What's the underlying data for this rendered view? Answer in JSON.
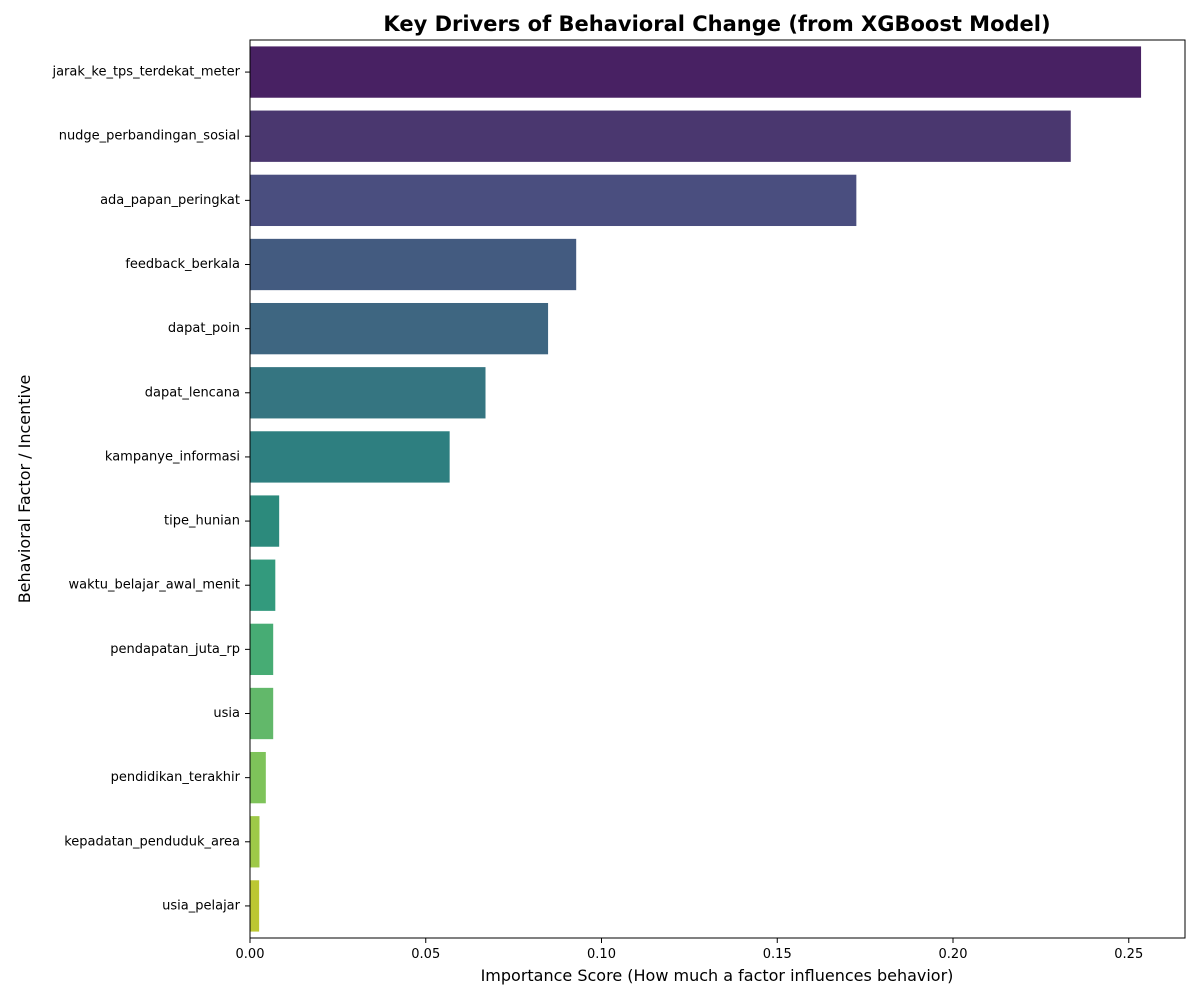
{
  "chart_data": {
    "type": "bar",
    "orientation": "horizontal",
    "title": "Key Drivers of Behavioral Change (from XGBoost Model)",
    "xlabel": "Importance Score (How much a factor influences behavior)",
    "ylabel": "Behavioral Factor / Incentive",
    "xlim": [
      0,
      0.266
    ],
    "xticks": [
      0.0,
      0.05,
      0.1,
      0.15,
      0.2,
      0.25
    ],
    "xtick_labels": [
      "0.00",
      "0.05",
      "0.10",
      "0.15",
      "0.20",
      "0.25"
    ],
    "grid": false,
    "legend": "none",
    "colormap": "viridis",
    "categories": [
      "jarak_ke_tps_terdekat_meter",
      "nudge_perbandingan_sosial",
      "ada_papan_peringkat",
      "feedback_berkala",
      "dapat_poin",
      "dapat_lencana",
      "kampanye_informasi",
      "tipe_hunian",
      "waktu_belajar_awal_menit",
      "pendapatan_juta_rp",
      "usia",
      "pendidikan_terakhir",
      "kepadatan_penduduk_area",
      "usia_pelajar"
    ],
    "values": [
      0.2535,
      0.2335,
      0.1725,
      0.0928,
      0.0848,
      0.067,
      0.0568,
      0.0083,
      0.0072,
      0.0066,
      0.0066,
      0.0045,
      0.0027,
      0.0026
    ],
    "colors": [
      "#482163",
      "#4a376f",
      "#4a4e7f",
      "#435b80",
      "#3e6681",
      "#357581",
      "#2e7f80",
      "#2c8a7c",
      "#339a7d",
      "#47ac74",
      "#62b86a",
      "#7ec35a",
      "#9ec948",
      "#bcc732"
    ]
  }
}
